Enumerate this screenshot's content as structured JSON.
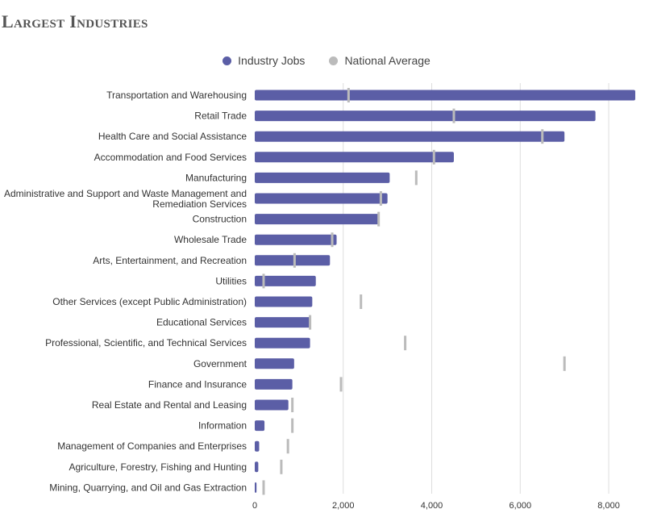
{
  "page_title": "Largest Industries",
  "legend": {
    "industry_label": "Industry Jobs",
    "national_label": "National Average"
  },
  "colors": {
    "industry": "#5b5ea6",
    "national": "#bbbbbb",
    "grid": "#dddddd"
  },
  "chart_data": {
    "type": "bar",
    "orientation": "horizontal",
    "categories": [
      "Transportation and Warehousing",
      "Retail Trade",
      "Health Care and Social Assistance",
      "Accommodation and Food Services",
      "Manufacturing",
      "Administrative and Support and Waste Management and Remediation Services",
      "Construction",
      "Wholesale Trade",
      "Arts, Entertainment, and Recreation",
      "Utilities",
      "Other Services (except Public Administration)",
      "Educational Services",
      "Professional, Scientific, and Technical Services",
      "Government",
      "Finance and Insurance",
      "Real Estate and Rental and Leasing",
      "Information",
      "Management of Companies and Enterprises",
      "Agriculture, Forestry, Fishing and Hunting",
      "Mining, Quarrying, and Oil and Gas Extraction"
    ],
    "series": [
      {
        "name": "Industry Jobs",
        "values": [
          8600,
          7700,
          7000,
          4500,
          3050,
          3000,
          2800,
          1850,
          1700,
          1380,
          1300,
          1250,
          1250,
          890,
          850,
          760,
          220,
          100,
          80,
          40
        ]
      },
      {
        "name": "National Average",
        "values": [
          2120,
          4500,
          6500,
          4050,
          3650,
          2850,
          2800,
          1750,
          900,
          200,
          2400,
          1250,
          3400,
          7000,
          1950,
          850,
          850,
          750,
          600,
          200
        ]
      }
    ],
    "xlim": [
      0,
      8600
    ],
    "xticks": [
      0,
      2000,
      4000,
      6000,
      8000
    ],
    "xtick_labels": [
      "0",
      "2,000",
      "4,000",
      "6,000",
      "8,000"
    ],
    "grid": true,
    "legend_position": "top-center"
  }
}
